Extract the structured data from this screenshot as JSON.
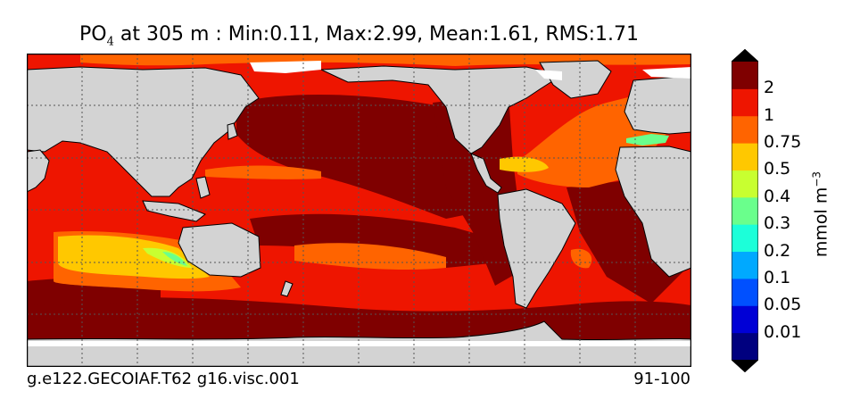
{
  "title": {
    "variable": "PO",
    "subscript": "4",
    "rest": " at 305 m : Min:0.11, Max:2.99, Mean:1.61, RMS:1.71"
  },
  "footer": {
    "case": "g.e122.GECOIAF.T62 g16.visc.001",
    "years": "91-100"
  },
  "colorbar": {
    "unit_base": "mmol m",
    "unit_exp": "−3",
    "levels": [
      "0.01",
      "0.05",
      "0.1",
      "0.2",
      "0.3",
      "0.4",
      "0.5",
      "0.75",
      "1",
      "2"
    ],
    "colors": [
      "#00007f",
      "#0000d6",
      "#0050ff",
      "#00a9ff",
      "#1cffd9",
      "#6aff8c",
      "#c8ff30",
      "#ffc800",
      "#ff6400",
      "#ee1500",
      "#7f0000"
    ]
  },
  "map_colors": {
    "land": "#d3d3d3",
    "sea_ice": "#ffffff",
    "grid": "#555555"
  }
}
